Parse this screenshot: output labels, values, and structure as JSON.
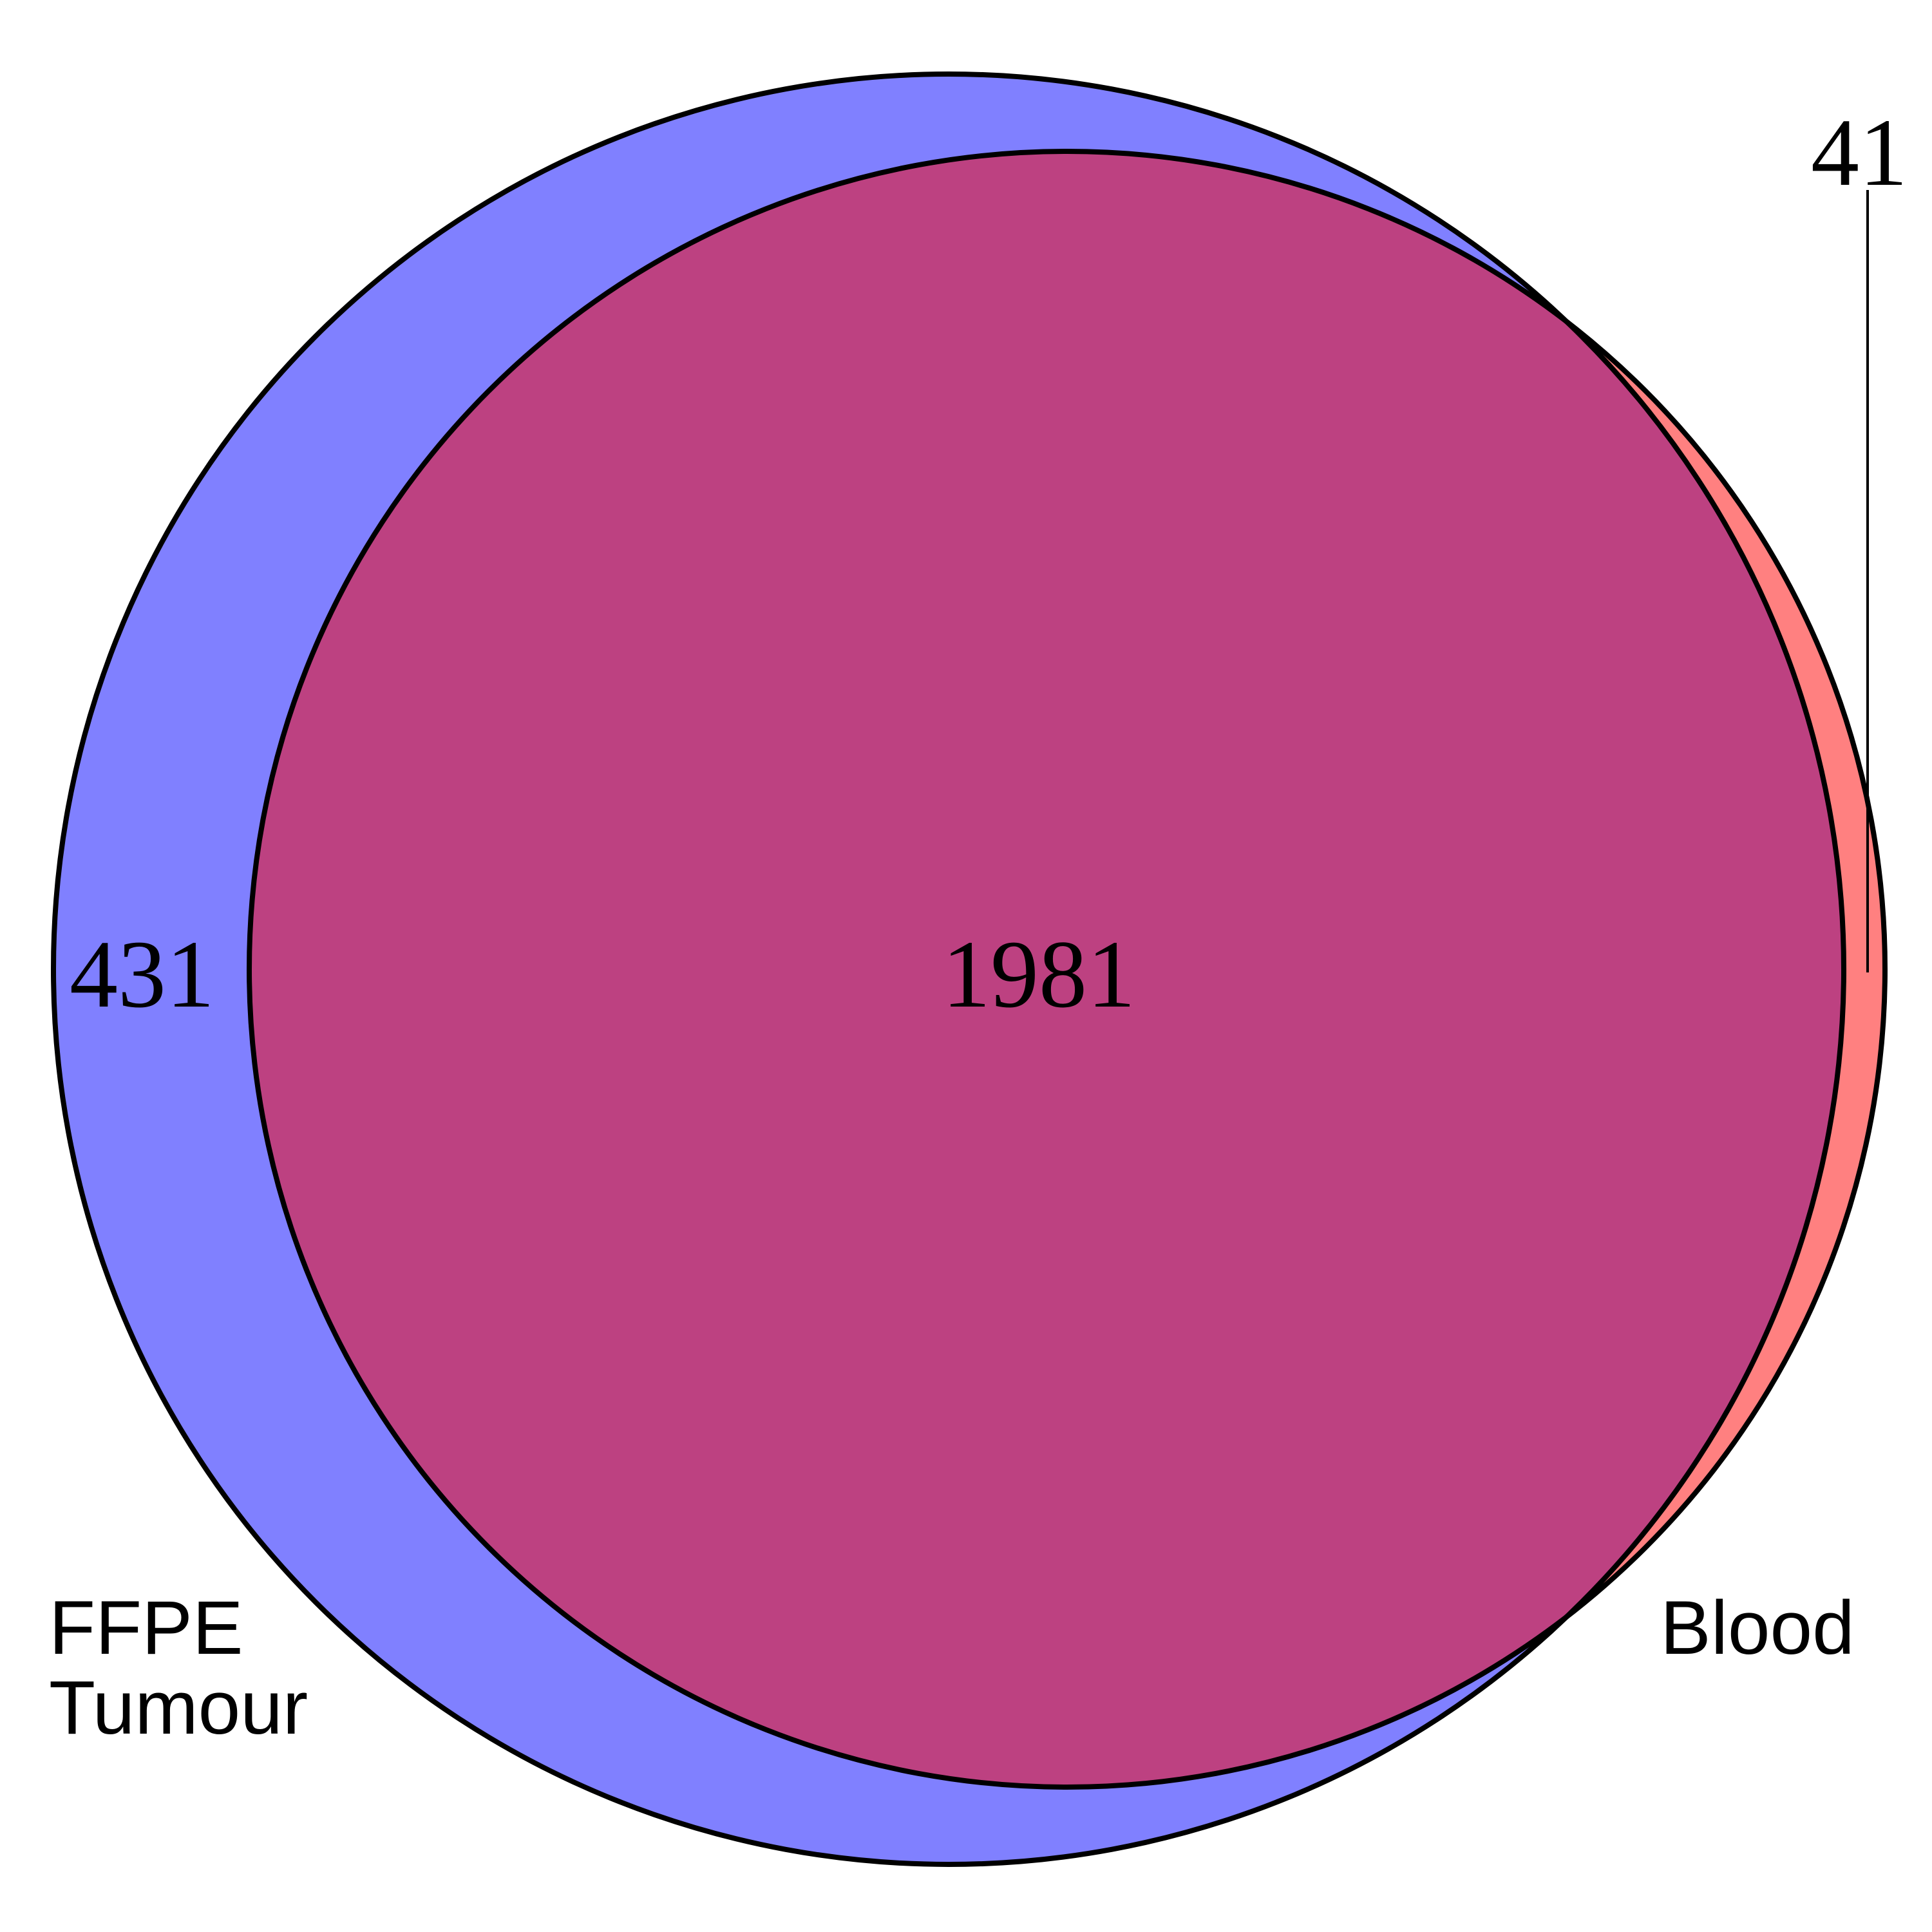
{
  "venn": {
    "sets": [
      {
        "id": "ffpe",
        "label_lines": [
          "FFPE",
          "Tumour"
        ],
        "only_count": "431",
        "color": "#8080ff"
      },
      {
        "id": "blood",
        "label_lines": [
          "Blood"
        ],
        "only_count": "41",
        "color": "#ff8080"
      }
    ],
    "intersection": {
      "count": "1981",
      "color": "#bd4181"
    },
    "outline_color": "#000000"
  }
}
